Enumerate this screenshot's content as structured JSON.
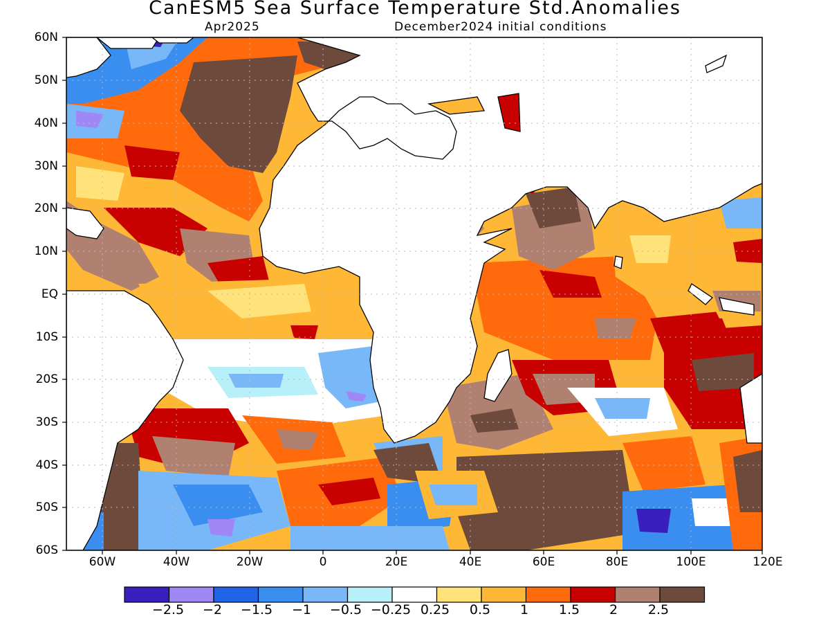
{
  "title": "CanESM5 Sea Surface Temperature Std.Anomalies",
  "subtitle_left": "Apr2025",
  "subtitle_right": "December2024 initial conditions",
  "lat_labels": [
    "60N",
    "50N",
    "40N",
    "30N",
    "20N",
    "10N",
    "EQ",
    "10S",
    "20S",
    "30S",
    "40S",
    "50S",
    "60S"
  ],
  "lon_labels": [
    "60W",
    "40W",
    "20W",
    "0",
    "20E",
    "40E",
    "60E",
    "80E",
    "100E",
    "120E"
  ],
  "colorbar": {
    "colors": [
      "#3a1fbf",
      "#9f88f5",
      "#2064e6",
      "#3a8ef0",
      "#78b8f8",
      "#b8f0fa",
      "#ffffff",
      "#ffe27a",
      "#ffb835",
      "#ff6a0d",
      "#c80000",
      "#b08070",
      "#6e4a3c"
    ],
    "labels": [
      "-2.5",
      "-2",
      "-1.5",
      "-1",
      "-0.5",
      "-0.25",
      "0.25",
      "0.5",
      "1",
      "1.5",
      "2",
      "2.5"
    ]
  },
  "colors": {
    "land": "#ffffff",
    "coast": "#000000",
    "grid": "#b8b8b8"
  }
}
